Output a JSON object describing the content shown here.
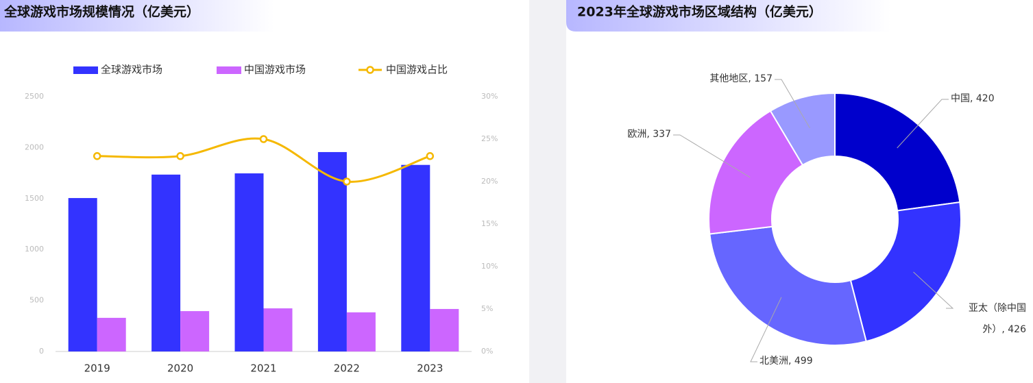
{
  "chart_data": [
    {
      "type": "bar",
      "title": "全球游戏市场规模情况（亿美元）",
      "categories": [
        "2019",
        "2020",
        "2021",
        "2022",
        "2023"
      ],
      "series": [
        {
          "name": "全球游戏市场",
          "color": "#3333ff",
          "values": [
            1505,
            1735,
            1747,
            1956,
            1830
          ]
        },
        {
          "name": "中国游戏市场",
          "color": "#cc66ff",
          "values": [
            330,
            396,
            423,
            384,
            417
          ]
        },
        {
          "name": "中国游戏占比",
          "color": "#f5b800",
          "type": "line",
          "axis": "y2",
          "values": [
            23,
            23,
            25,
            20,
            23
          ]
        }
      ],
      "ylim": [
        0,
        2500
      ],
      "yticks": [
        0,
        500,
        1000,
        1500,
        2000,
        2500
      ],
      "y2lim": [
        0,
        30
      ],
      "y2ticks": [
        {
          "value": 0,
          "label": "0%"
        },
        {
          "value": 5,
          "label": "5%"
        },
        {
          "value": 10,
          "label": "10%"
        },
        {
          "value": 15,
          "label": "15%"
        },
        {
          "value": 20,
          "label": "20%"
        },
        {
          "value": 25,
          "label": "25%"
        },
        {
          "value": 30,
          "label": "30%"
        }
      ],
      "grid": false,
      "legend": "top"
    },
    {
      "type": "pie",
      "title": "2023年全球游戏市场区域结构（亿美元）",
      "donut": true,
      "values": [
        420,
        426,
        499,
        337,
        157
      ],
      "value_labels": [
        "中国, 420",
        "亚太（除中国外）, 426",
        "北美洲, 499",
        "欧洲, 337",
        "其他地区, 157"
      ],
      "colors": [
        "#0000cc",
        "#3333ff",
        "#6666ff",
        "#cc66ff",
        "#9999ff"
      ]
    }
  ]
}
